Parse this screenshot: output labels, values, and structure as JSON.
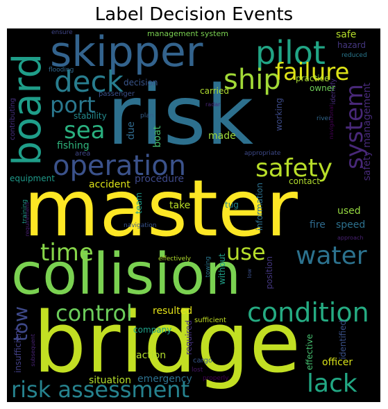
{
  "title": "Label Decision Events",
  "colors": {
    "background": "#000000",
    "palette": "viridis"
  },
  "words": [
    {
      "id": "master",
      "text": "master",
      "color": "#fde725"
    },
    {
      "id": "risk",
      "text": "risk",
      "color": "#2d708e"
    },
    {
      "id": "bridge",
      "text": "bridge",
      "color": "#c2df23"
    },
    {
      "id": "collision",
      "text": "collision",
      "color": "#7ad151"
    },
    {
      "id": "skipper",
      "text": "skipper",
      "color": "#33638d"
    },
    {
      "id": "board",
      "text": "board",
      "color": "#1f9e89"
    },
    {
      "id": "pilot",
      "text": "pilot",
      "color": "#21a585"
    },
    {
      "id": "deck",
      "text": "deck",
      "color": "#287d8e"
    },
    {
      "id": "ship",
      "text": "ship",
      "color": "#a2da37"
    },
    {
      "id": "failure",
      "text": "failure",
      "color": "#dde318"
    },
    {
      "id": "port",
      "text": "port",
      "color": "#2a788e"
    },
    {
      "id": "sea",
      "text": "sea",
      "color": "#2ab07f"
    },
    {
      "id": "system",
      "text": "system",
      "color": "#482878"
    },
    {
      "id": "operation",
      "text": "operation",
      "color": "#3b528b"
    },
    {
      "id": "safety",
      "text": "safety",
      "color": "#b8de29"
    },
    {
      "id": "time",
      "text": "time",
      "color": "#86d549"
    },
    {
      "id": "use",
      "text": "use",
      "color": "#b5de2b"
    },
    {
      "id": "water",
      "text": "water",
      "color": "#2c728e"
    },
    {
      "id": "control",
      "text": "control",
      "color": "#6ccd5a"
    },
    {
      "id": "condition",
      "text": "condition",
      "color": "#25ab82"
    },
    {
      "id": "tow",
      "text": "tow",
      "color": "#3e4989"
    },
    {
      "id": "risk-assessment",
      "text": "risk assessment",
      "color": "#26828e"
    },
    {
      "id": "lack",
      "text": "lack",
      "color": "#22a884"
    },
    {
      "id": "management-system",
      "text": "management system",
      "color": "#7ad151"
    },
    {
      "id": "safe",
      "text": "safe",
      "color": "#b5de2b"
    },
    {
      "id": "hazard",
      "text": "hazard",
      "color": "#453781"
    },
    {
      "id": "reduced",
      "text": "reduced",
      "color": "#2a788e"
    },
    {
      "id": "ensure",
      "text": "ensure",
      "color": "#404688"
    },
    {
      "id": "flooding",
      "text": "flooding",
      "color": "#31688e"
    },
    {
      "id": "contributing",
      "text": "contributing",
      "color": "#46307e"
    },
    {
      "id": "identify",
      "text": "identify",
      "color": "#472d7b"
    },
    {
      "id": "safety-management",
      "text": "safety management",
      "color": "#472a7a"
    },
    {
      "id": "practice",
      "text": "practice",
      "color": "#a8db34"
    },
    {
      "id": "owner",
      "text": "owner",
      "color": "#6ece58"
    },
    {
      "id": "decision",
      "text": "decision",
      "color": "#39568c"
    },
    {
      "id": "passenger",
      "text": "passenger",
      "color": "#3b518b"
    },
    {
      "id": "carried",
      "text": "carried",
      "color": "#b0dd2f"
    },
    {
      "id": "working",
      "text": "working",
      "color": "#3e4c8a"
    },
    {
      "id": "stability",
      "text": "stability",
      "color": "#238a8d"
    },
    {
      "id": "plan",
      "text": "plan",
      "color": "#35608d"
    },
    {
      "id": "radar",
      "text": "radar",
      "color": "#482677"
    },
    {
      "id": "river",
      "text": "river",
      "color": "#31688e"
    },
    {
      "id": "navigational",
      "text": "navigational",
      "color": "#440154"
    },
    {
      "id": "fishing",
      "text": "fishing",
      "color": "#2fb47c"
    },
    {
      "id": "due",
      "text": "due",
      "color": "#306a8e"
    },
    {
      "id": "boat",
      "text": "boat",
      "color": "#46c06f"
    },
    {
      "id": "made",
      "text": "made",
      "color": "#9fda3a"
    },
    {
      "id": "area",
      "text": "area",
      "color": "#3f4788"
    },
    {
      "id": "appropriate",
      "text": "appropriate",
      "color": "#3e4a89"
    },
    {
      "id": "equipment",
      "text": "equipment",
      "color": "#1f9a8a"
    },
    {
      "id": "accident",
      "text": "accident",
      "color": "#dde318"
    },
    {
      "id": "procedure",
      "text": "procedure",
      "color": "#3e4989"
    },
    {
      "id": "contact",
      "text": "contact",
      "color": "#b2dd2d"
    },
    {
      "id": "training",
      "text": "training",
      "color": "#1e9b8a"
    },
    {
      "id": "team",
      "text": "team",
      "color": "#1e9c89"
    },
    {
      "id": "take",
      "text": "take",
      "color": "#bade28"
    },
    {
      "id": "tug",
      "text": "tug",
      "color": "#25848e"
    },
    {
      "id": "information",
      "text": "information",
      "color": "#2c718e"
    },
    {
      "id": "fire",
      "text": "fire",
      "color": "#2f6b8e"
    },
    {
      "id": "speed",
      "text": "speed",
      "color": "#2d718e"
    },
    {
      "id": "used",
      "text": "used",
      "color": "#95d840"
    },
    {
      "id": "requirement",
      "text": "requirement",
      "color": "#481f70"
    },
    {
      "id": "navigation",
      "text": "navigation",
      "color": "#3a548c"
    },
    {
      "id": "approach",
      "text": "approach",
      "color": "#482173"
    },
    {
      "id": "effectively",
      "text": "effectively",
      "color": "#b2dd2d"
    },
    {
      "id": "towing",
      "text": "towing",
      "color": "#2a768e"
    },
    {
      "id": "without",
      "text": "without",
      "color": "#1fa088"
    },
    {
      "id": "position",
      "text": "position",
      "color": "#453882"
    },
    {
      "id": "low",
      "text": "low",
      "color": "#3b518b"
    },
    {
      "id": "resulted",
      "text": "resulted",
      "color": "#e5e419"
    },
    {
      "id": "sufficient",
      "text": "sufficient",
      "color": "#c2df23"
    },
    {
      "id": "identified",
      "text": "identified",
      "color": "#3b528b"
    },
    {
      "id": "insufficient",
      "text": "insufficient",
      "color": "#424086"
    },
    {
      "id": "subsequent",
      "text": "subsequent",
      "color": "#482475"
    },
    {
      "id": "company",
      "text": "company",
      "color": "#1fa188"
    },
    {
      "id": "required",
      "text": "required",
      "color": "#46337f"
    },
    {
      "id": "effective",
      "text": "effective",
      "color": "#46c06f"
    },
    {
      "id": "action",
      "text": "action",
      "color": "#b2dd2d"
    },
    {
      "id": "cargo",
      "text": "cargo",
      "color": "#38588c"
    },
    {
      "id": "officer",
      "text": "officer",
      "color": "#d8e219"
    },
    {
      "id": "lost",
      "text": "lost",
      "color": "#481769"
    },
    {
      "id": "situation",
      "text": "situation",
      "color": "#b5de2b"
    },
    {
      "id": "emergency",
      "text": "emergency",
      "color": "#2d718e"
    },
    {
      "id": "properly",
      "text": "properly",
      "color": "#440154"
    }
  ]
}
